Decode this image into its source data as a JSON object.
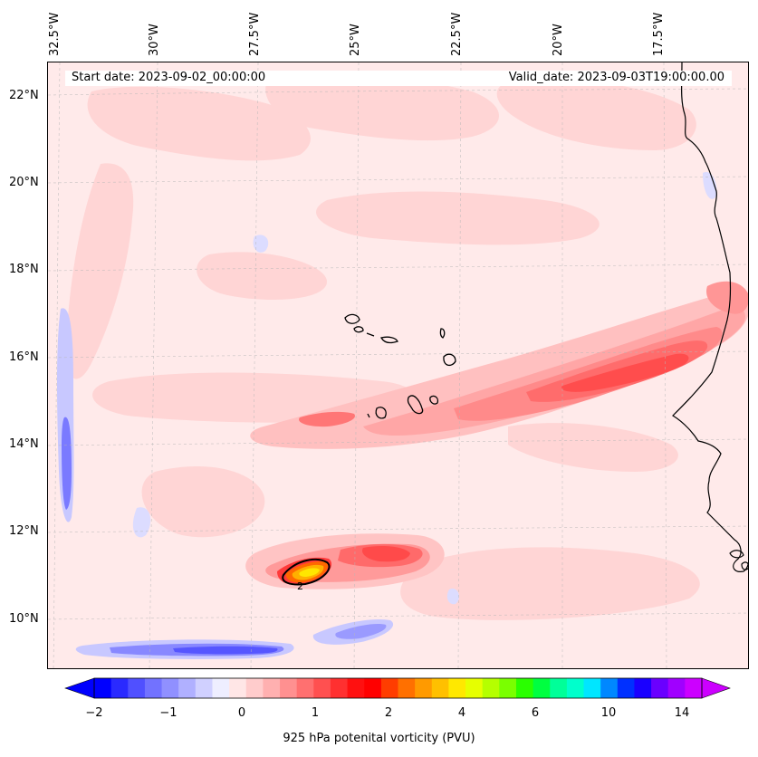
{
  "map": {
    "start_date_text": "Start date: 2023-09-02_00:00:00",
    "valid_date_text": "Valid_date: 2023-09-03T19:00:00.00",
    "longitude_labels": [
      "32.5°W",
      "30°W",
      "27.5°W",
      "25°W",
      "22.5°W",
      "20°W",
      "17.5°W"
    ],
    "latitude_labels": [
      "22°N",
      "20°N",
      "18°N",
      "16°N",
      "14°N",
      "12°N",
      "10°N"
    ],
    "contour_label": "2",
    "variable": "925 hPa potential vorticity",
    "extent": {
      "lon_min": -32.7,
      "lon_max": -15.0,
      "lat_min": 8.9,
      "lat_max": 22.8
    }
  },
  "colorbar": {
    "label": "925 hPa potenital vorticity (PVU)",
    "tick_labels": [
      "−2",
      "−1",
      "0",
      "1",
      "2",
      "4",
      "6",
      "10",
      "14"
    ],
    "colors": [
      "#0000ff",
      "#2a2aff",
      "#5050ff",
      "#7272ff",
      "#9090ff",
      "#b0b0ff",
      "#d0d0ff",
      "#eeeeff",
      "#ffe6e6",
      "#ffcccc",
      "#ffb0b0",
      "#ff9090",
      "#ff7070",
      "#ff5050",
      "#ff3030",
      "#ff1010",
      "#ff0000",
      "#ff3d00",
      "#ff7000",
      "#ff9a00",
      "#ffc000",
      "#ffe800",
      "#e6ff00",
      "#b5ff00",
      "#7aff00",
      "#2aff00",
      "#00ff40",
      "#00ff99",
      "#00ffcc",
      "#00e6ff",
      "#0088ff",
      "#0030ff",
      "#1a00ff",
      "#6a00ff",
      "#a000ff",
      "#cc00ff"
    ]
  }
}
